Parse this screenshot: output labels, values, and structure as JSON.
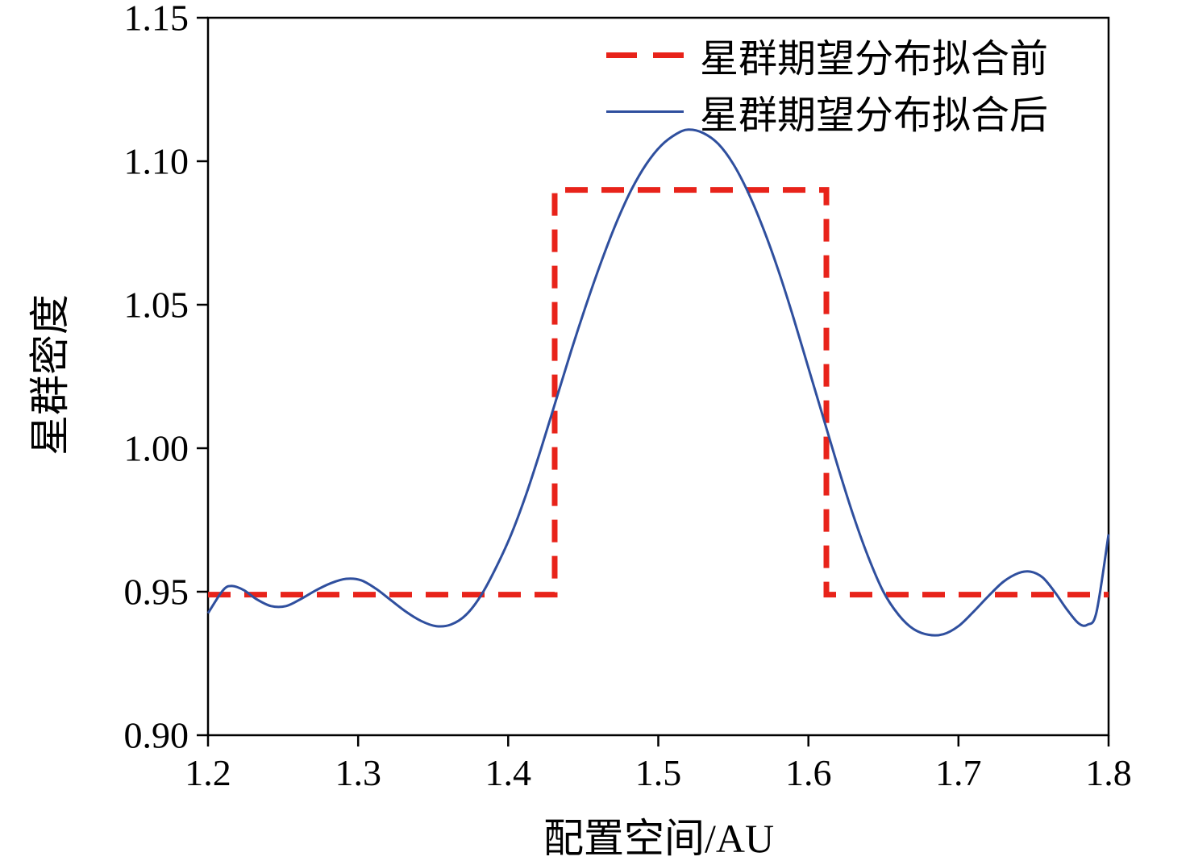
{
  "chart_data": {
    "type": "line",
    "title": "",
    "xlabel": "配置空间/AU",
    "ylabel": "星群密度",
    "xlim": [
      1.2,
      1.8
    ],
    "ylim": [
      0.9,
      1.15
    ],
    "xticks": [
      1.2,
      1.3,
      1.4,
      1.5,
      1.6,
      1.7,
      1.8
    ],
    "xtick_labels": [
      "1.2",
      "1.3",
      "1.4",
      "1.5",
      "1.6",
      "1.7",
      "1.8"
    ],
    "yticks": [
      0.9,
      0.95,
      1.0,
      1.05,
      1.1,
      1.15
    ],
    "ytick_labels": [
      "0.90",
      "0.95",
      "1.00",
      "1.05",
      "1.10",
      "1.15"
    ],
    "grid": false,
    "legend_position": "upper-center-inside, no border",
    "series": [
      {
        "name": "星群期望分布拟合前",
        "type": "step",
        "style": "dashed",
        "color": "#e8231a",
        "line_width": 7,
        "x": [
          1.2,
          1.431,
          1.431,
          1.612,
          1.612,
          1.8
        ],
        "y": [
          0.949,
          0.949,
          1.09,
          1.09,
          0.949,
          0.949
        ]
      },
      {
        "name": "星群期望分布拟合后",
        "type": "smooth",
        "style": "solid",
        "color": "#2f4f9e",
        "line_width": 3,
        "points": [
          [
            1.2,
            0.9425
          ],
          [
            1.21,
            0.9505
          ],
          [
            1.216,
            0.952
          ],
          [
            1.224,
            0.9505
          ],
          [
            1.232,
            0.9475
          ],
          [
            1.242,
            0.945
          ],
          [
            1.252,
            0.945
          ],
          [
            1.262,
            0.9475
          ],
          [
            1.272,
            0.9505
          ],
          [
            1.282,
            0.953
          ],
          [
            1.292,
            0.9545
          ],
          [
            1.302,
            0.954
          ],
          [
            1.312,
            0.951
          ],
          [
            1.322,
            0.947
          ],
          [
            1.332,
            0.943
          ],
          [
            1.342,
            0.9398
          ],
          [
            1.352,
            0.938
          ],
          [
            1.362,
            0.9386
          ],
          [
            1.372,
            0.942
          ],
          [
            1.382,
            0.9488
          ],
          [
            1.392,
            0.9585
          ],
          [
            1.402,
            0.97
          ],
          [
            1.412,
            0.984
          ],
          [
            1.422,
            1.0
          ],
          [
            1.432,
            1.017
          ],
          [
            1.442,
            1.034
          ],
          [
            1.452,
            1.05
          ],
          [
            1.462,
            1.065
          ],
          [
            1.472,
            1.0785
          ],
          [
            1.482,
            1.09
          ],
          [
            1.492,
            1.099
          ],
          [
            1.502,
            1.1055
          ],
          [
            1.512,
            1.1095
          ],
          [
            1.52,
            1.111
          ],
          [
            1.53,
            1.1098
          ],
          [
            1.54,
            1.106
          ],
          [
            1.55,
            1.099
          ],
          [
            1.56,
            1.089
          ],
          [
            1.57,
            1.0765
          ],
          [
            1.58,
            1.062
          ],
          [
            1.59,
            1.0455
          ],
          [
            1.6,
            1.028
          ],
          [
            1.61,
            1.0105
          ],
          [
            1.62,
            0.993
          ],
          [
            1.63,
            0.9765
          ],
          [
            1.64,
            0.962
          ],
          [
            1.65,
            0.95
          ],
          [
            1.66,
            0.942
          ],
          [
            1.67,
            0.937
          ],
          [
            1.68,
            0.935
          ],
          [
            1.69,
            0.9352
          ],
          [
            1.7,
            0.938
          ],
          [
            1.71,
            0.943
          ],
          [
            1.72,
            0.9485
          ],
          [
            1.73,
            0.9535
          ],
          [
            1.74,
            0.9565
          ],
          [
            1.748,
            0.957
          ],
          [
            1.756,
            0.955
          ],
          [
            1.764,
            0.95
          ],
          [
            1.772,
            0.944
          ],
          [
            1.78,
            0.939
          ],
          [
            1.786,
            0.9385
          ],
          [
            1.792,
            0.943
          ],
          [
            1.8,
            0.97
          ]
        ]
      }
    ]
  }
}
